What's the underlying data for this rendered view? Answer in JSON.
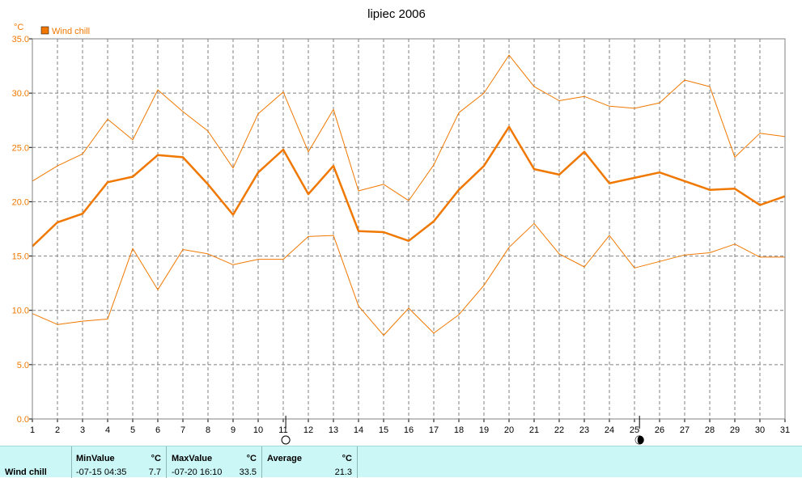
{
  "chart_data": {
    "type": "line",
    "title": "lipiec 2006",
    "ylabel": "°C",
    "xlabel": "",
    "x": [
      1,
      2,
      3,
      4,
      5,
      6,
      7,
      8,
      9,
      10,
      11,
      12,
      13,
      14,
      15,
      16,
      17,
      18,
      19,
      20,
      21,
      22,
      23,
      24,
      25,
      26,
      27,
      28,
      29,
      30,
      31
    ],
    "xlim": [
      1,
      31
    ],
    "ylim": [
      0,
      35
    ],
    "yticks": [
      "0.0",
      "5.0",
      "10.0",
      "15.0",
      "20.0",
      "25.0",
      "30.0",
      "35.0"
    ],
    "grid": true,
    "legend_position": "top-left",
    "series": [
      {
        "name": "Wind chill",
        "role": "average",
        "color": "#f07800",
        "values": [
          15.9,
          18.1,
          18.9,
          21.8,
          22.3,
          24.3,
          24.1,
          21.6,
          18.8,
          22.7,
          24.8,
          20.7,
          23.3,
          17.3,
          17.2,
          16.4,
          18.2,
          21.1,
          23.3,
          26.9,
          23.0,
          22.5,
          24.6,
          21.7,
          22.2,
          22.7,
          21.9,
          21.1,
          21.2,
          19.7,
          20.5
        ]
      },
      {
        "name": "",
        "role": "max",
        "color": "#f07800",
        "values": [
          21.9,
          23.3,
          24.4,
          27.6,
          25.7,
          30.3,
          28.3,
          26.5,
          23.1,
          28.1,
          30.1,
          24.6,
          28.5,
          21.0,
          21.6,
          20.1,
          23.4,
          28.2,
          30.0,
          33.5,
          30.6,
          29.3,
          29.7,
          28.8,
          28.6,
          29.1,
          31.2,
          30.6,
          24.1,
          26.3,
          26.0
        ]
      },
      {
        "name": "",
        "role": "min",
        "color": "#f07800",
        "values": [
          9.7,
          8.7,
          9.0,
          9.2,
          15.7,
          11.9,
          15.6,
          15.2,
          14.2,
          14.7,
          14.7,
          16.8,
          16.9,
          10.4,
          7.7,
          10.2,
          7.9,
          9.6,
          12.3,
          15.8,
          18.0,
          15.2,
          14.0,
          16.9,
          13.9,
          14.5,
          15.1,
          15.3,
          16.1,
          14.9,
          14.9
        ]
      }
    ],
    "moon_phases": [
      {
        "day": 11.1,
        "phase": "full"
      },
      {
        "day": 25.2,
        "phase": "new"
      }
    ]
  },
  "stats": {
    "series_label": "Wind chill",
    "min": {
      "header": "MinValue",
      "unit": "°C",
      "when": "-07-15  04:35",
      "value": "7.7"
    },
    "max": {
      "header": "MaxValue",
      "unit": "°C",
      "when": "-07-20  16:10",
      "value": "33.5"
    },
    "avg": {
      "header": "Average",
      "unit": "°C",
      "value": "21.3"
    }
  }
}
